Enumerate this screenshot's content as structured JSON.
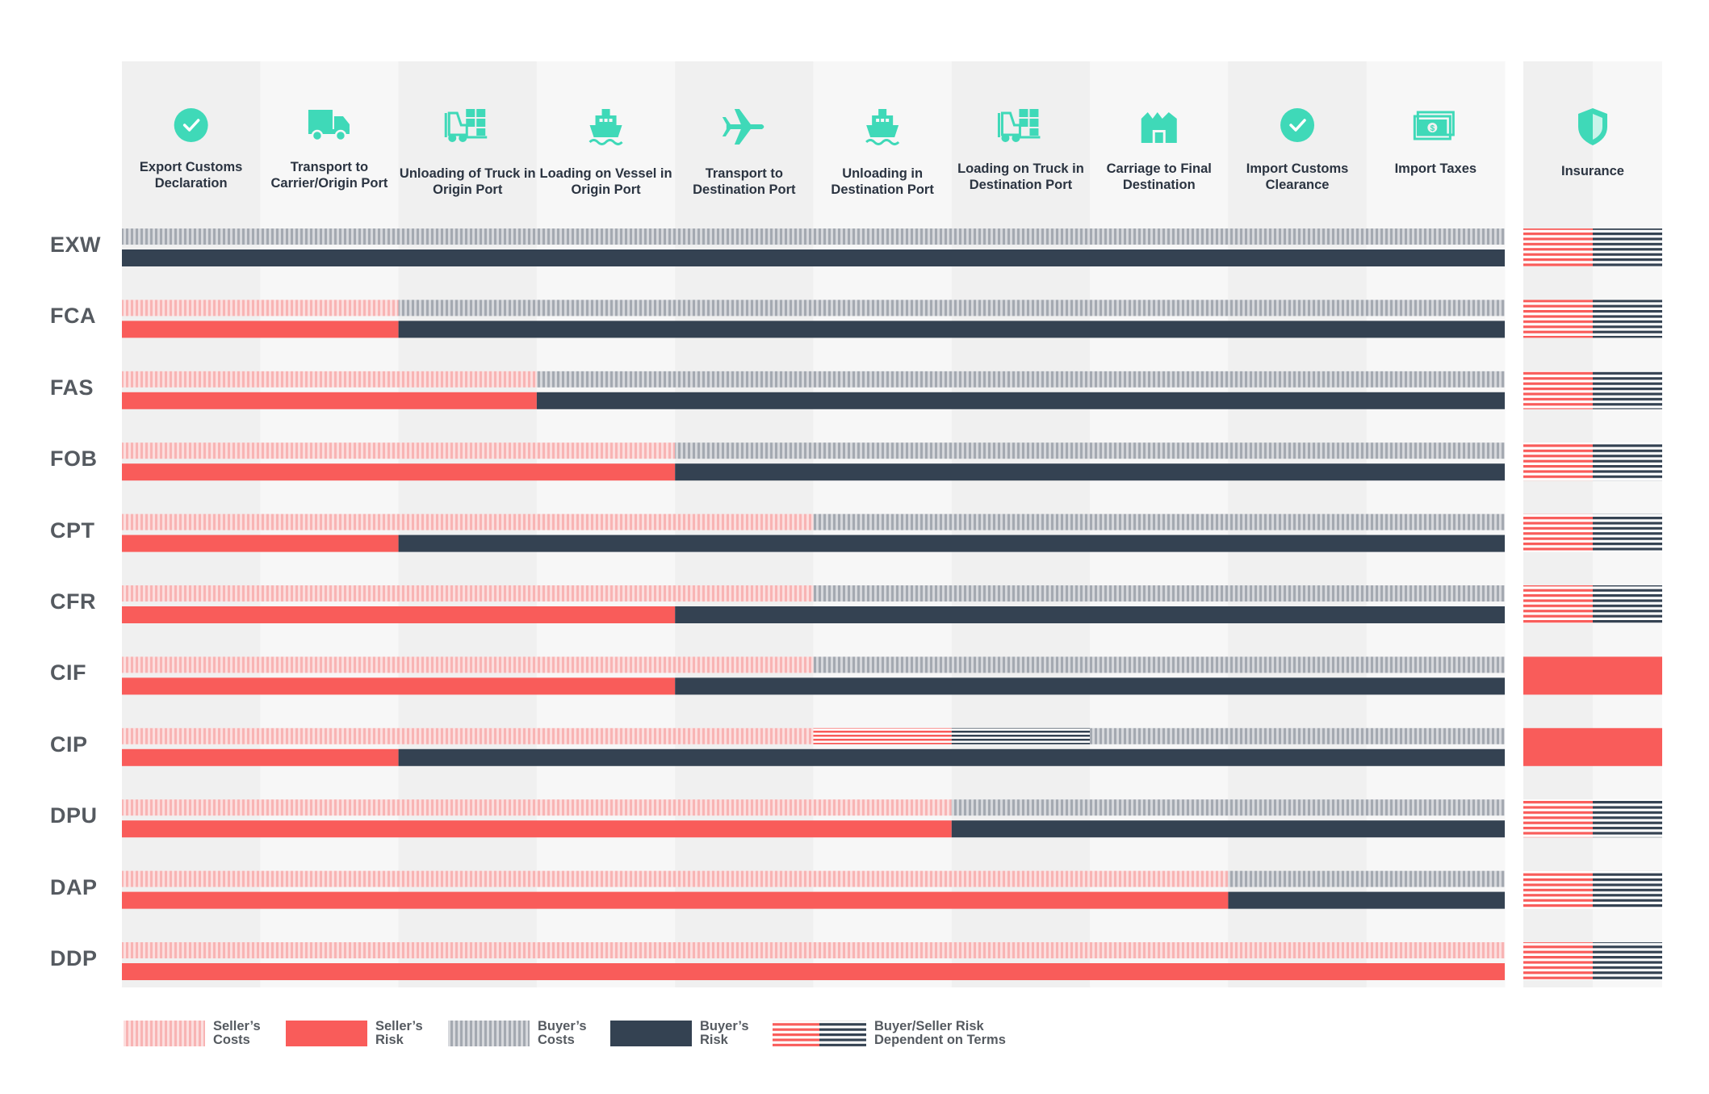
{
  "colors": {
    "seller_cost_a": "#f8b4b4",
    "seller_cost_b": "#fcdede",
    "seller_risk": "#f95c5a",
    "buyer_cost_a": "#a4a9b1",
    "buyer_cost_b": "#d6d8dc",
    "buyer_risk": "#344252",
    "teal": "#3fd9b8",
    "label": "#555a60",
    "header_text": "#2b3441",
    "col_bg_a": "#f0f0f0",
    "col_bg_b": "#f7f7f7"
  },
  "chart_data": {
    "type": "table",
    "columns": [
      {
        "label": "Export Customs Declaration",
        "icon": "check-circle-icon"
      },
      {
        "label": "Transport to Carrier/Origin Port",
        "icon": "truck-icon"
      },
      {
        "label": "Unloading of Truck in Origin Port",
        "icon": "forklift-icon"
      },
      {
        "label": "Loading on Vessel in Origin Port",
        "icon": "ship-icon"
      },
      {
        "label": "Transport to Destination Port",
        "icon": "airplane-icon"
      },
      {
        "label": "Unloading in Destination Port",
        "icon": "ship-icon"
      },
      {
        "label": "Loading on Truck in Destination Port",
        "icon": "forklift-icon"
      },
      {
        "label": "Carriage to Final Destination",
        "icon": "warehouse-icon"
      },
      {
        "label": "Import Customs Clearance",
        "icon": "check-circle-icon"
      },
      {
        "label": "Import Taxes",
        "icon": "money-icon"
      }
    ],
    "insurance": {
      "label": "Insurance",
      "icon": "shield-icon"
    },
    "encoding": "Each term has a costs bar and a risk bar; values give the number of stages (out of 10) borne by the seller. CIP has stages 5-6 as buyer/seller dependent on terms.",
    "rows": [
      {
        "term": "EXW",
        "seller_costs_stages": 0,
        "seller_risk_stages": 0,
        "insurance": "dependent"
      },
      {
        "term": "FCA",
        "seller_costs_stages": 2,
        "seller_risk_stages": 2,
        "insurance": "dependent"
      },
      {
        "term": "FAS",
        "seller_costs_stages": 3,
        "seller_risk_stages": 3,
        "insurance": "dependent"
      },
      {
        "term": "FOB",
        "seller_costs_stages": 4,
        "seller_risk_stages": 4,
        "insurance": "dependent"
      },
      {
        "term": "CPT",
        "seller_costs_stages": 5,
        "seller_risk_stages": 2,
        "insurance": "dependent"
      },
      {
        "term": "CFR",
        "seller_costs_stages": 5,
        "seller_risk_stages": 4,
        "insurance": "dependent"
      },
      {
        "term": "CIF",
        "seller_costs_stages": 5,
        "seller_risk_stages": 4,
        "insurance": "seller"
      },
      {
        "term": "CIP",
        "seller_costs_stages": 5,
        "dependent_costs_stages": 2,
        "seller_risk_stages": 2,
        "insurance": "seller"
      },
      {
        "term": "DPU",
        "seller_costs_stages": 6,
        "seller_risk_stages": 6,
        "insurance": "dependent"
      },
      {
        "term": "DAP",
        "seller_costs_stages": 8,
        "seller_risk_stages": 8,
        "insurance": "dependent"
      },
      {
        "term": "DDP",
        "seller_costs_stages": 10,
        "seller_risk_stages": 10,
        "insurance": "dependent"
      }
    ],
    "legend": [
      {
        "key": "seller_costs",
        "line1": "Seller’s",
        "line2": "Costs"
      },
      {
        "key": "seller_risk",
        "line1": "Seller’s",
        "line2": "Risk"
      },
      {
        "key": "buyer_costs",
        "line1": "Buyer’s",
        "line2": "Costs"
      },
      {
        "key": "buyer_risk",
        "line1": "Buyer’s",
        "line2": "Risk"
      },
      {
        "key": "dependent",
        "line1": "Buyer/Seller Risk",
        "line2": "Dependent on Terms"
      }
    ]
  }
}
